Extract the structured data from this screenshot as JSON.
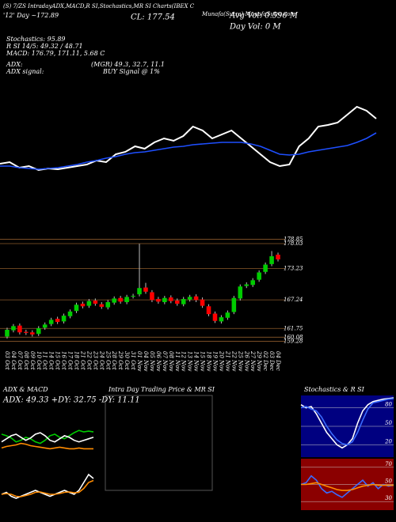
{
  "header": {
    "line1": "(S) 7/ZS IntradayADX,MACD,R SI,Stochastics,MR SI Charts(IBEX C",
    "line1b": "Munafa(Sutra) MunafaSutra.com",
    "close": "CL: 177.54",
    "day": "'12' Day ~172.89",
    "avg_vol": "Avg Vol: 0.596 M",
    "day_vol": "Day Vol: 0  M",
    "stochastics": "Stochastics: 95.89",
    "rsi": "R SI 14/5: 49.32 / 48.71",
    "macd": "MACD: 176.79, 171.11, 5.68 C",
    "adx": "ADX:",
    "adx_vals": "(MGR) 49.3, 32.7, 11.1",
    "adx_signal": "ADX  signal:",
    "adx_signal_val": "BUY Signal @ 1%",
    "intraday_title": "Intra Day Trading Price  & MR SI"
  },
  "chart_data": [
    {
      "type": "line",
      "ylim": [
        0,
        130
      ],
      "series": [
        {
          "color": "#ffffff",
          "values": [
            43,
            45,
            38,
            40,
            35,
            37,
            36,
            38,
            40,
            42,
            47,
            45,
            55,
            58,
            65,
            62,
            70,
            75,
            72,
            78,
            90,
            85,
            75,
            80,
            85,
            75,
            65,
            55,
            45,
            40,
            42,
            65,
            75,
            90,
            92,
            95,
            105,
            115,
            110,
            100
          ]
        },
        {
          "color": "#1e4fff",
          "values": [
            40,
            40,
            38,
            37,
            36,
            37,
            38,
            40,
            42,
            45,
            47,
            50,
            52,
            55,
            57,
            58,
            60,
            62,
            64,
            65,
            67,
            68,
            69,
            70,
            70,
            70,
            68,
            65,
            60,
            55,
            54,
            55,
            58,
            60,
            62,
            64,
            66,
            70,
            75,
            82
          ]
        }
      ]
    },
    {
      "type": "candlestick",
      "ylim": [
        158,
        180
      ],
      "yticks": [
        178.85,
        178.03,
        173.23,
        167.24,
        161.75,
        160.08,
        159.28
      ],
      "up_color": "#00cc00",
      "down_color": "#ff0000",
      "level_color": "#8b5a2b",
      "categories": [
        "03 Oct",
        "04 Oct",
        "07 Oct",
        "08 Oct",
        "09 Oct",
        "10 Oct",
        "11 Oct",
        "14 Oct",
        "15 Oct",
        "16 Oct",
        "17 Oct",
        "18 Oct",
        "21 Oct",
        "22 Oct",
        "23 Oct",
        "24 Oct",
        "25 Oct",
        "28 Oct",
        "29 Oct",
        "30 Oct",
        "31 Oct",
        "01 Nov",
        "04 Nov",
        "05 Nov",
        "06 Nov",
        "07 Nov",
        "08 Nov",
        "11 Nov",
        "12 Nov",
        "13 Nov",
        "14 Nov",
        "15 Nov",
        "18 Nov",
        "19 Nov",
        "20 Nov",
        "21 Nov",
        "22 Nov",
        "25 Nov",
        "26 Nov",
        "27 Nov",
        "29 Nov",
        "02 Dec",
        "03 Dec",
        "04 Dec"
      ],
      "open": [
        160.2,
        161.4,
        162.3,
        161.1,
        161.0,
        160.7,
        161.9,
        162.6,
        163.6,
        163.1,
        164.1,
        165.1,
        166.5,
        166.1,
        167.1,
        166.4,
        165.8,
        166.7,
        167.6,
        166.8,
        167.9,
        168.3,
        169.6,
        168.7,
        167.4,
        166.8,
        167.7,
        167.1,
        166.4,
        167.3,
        167.9,
        167.3,
        166.0,
        164.6,
        163.1,
        163.8,
        164.9,
        167.5,
        169.9,
        170.1,
        171.1,
        172.6,
        174.1,
        175.9
      ],
      "high": [
        161.9,
        162.6,
        162.7,
        161.5,
        161.4,
        162.2,
        162.9,
        163.8,
        164.0,
        164.6,
        165.4,
        166.7,
        166.9,
        167.4,
        167.5,
        166.8,
        167.2,
        167.9,
        168.0,
        168.2,
        168.4,
        178.0,
        170.5,
        169.1,
        167.8,
        168.0,
        168.1,
        167.5,
        167.8,
        168.2,
        168.3,
        167.7,
        166.4,
        165.0,
        164.3,
        165.2,
        168.0,
        170.2,
        170.6,
        171.4,
        172.9,
        174.4,
        176.6,
        176.3
      ],
      "low": [
        159.8,
        161.0,
        160.6,
        160.5,
        160.2,
        160.3,
        161.5,
        162.2,
        162.6,
        162.7,
        163.7,
        164.7,
        165.6,
        165.7,
        166.1,
        165.5,
        165.4,
        166.3,
        166.5,
        166.4,
        167.5,
        167.9,
        168.4,
        166.8,
        166.5,
        166.4,
        166.6,
        166.1,
        166.0,
        166.9,
        166.8,
        165.7,
        164.1,
        162.8,
        162.7,
        163.4,
        164.5,
        167.1,
        169.5,
        169.7,
        170.7,
        172.2,
        173.7,
        174.6
      ],
      "close": [
        161.5,
        162.2,
        161.0,
        160.9,
        160.6,
        161.8,
        162.5,
        163.4,
        163.0,
        164.2,
        165.0,
        166.3,
        166.0,
        167.0,
        166.5,
        165.9,
        166.8,
        167.5,
        166.9,
        167.8,
        168.0,
        169.5,
        168.8,
        167.2,
        166.9,
        167.6,
        167.0,
        166.5,
        167.4,
        167.8,
        167.2,
        166.1,
        164.5,
        163.2,
        163.9,
        164.8,
        167.6,
        169.8,
        170.2,
        171.0,
        172.5,
        174.0,
        175.6,
        175.0
      ]
    },
    {
      "type": "line",
      "title": "ADX  & MACD",
      "annotation": "ADX: 49.33  +DY: 32.75  -DY: 11.11",
      "ylim": [
        0,
        60
      ],
      "series": [
        {
          "color": "#00cc00",
          "values": [
            30,
            28,
            25,
            20,
            22,
            26,
            24,
            20,
            18,
            22,
            28,
            30,
            26,
            24,
            28,
            32,
            35,
            33,
            34,
            33
          ]
        },
        {
          "color": "#ffffff",
          "values": [
            20,
            24,
            28,
            30,
            26,
            22,
            25,
            30,
            32,
            28,
            22,
            20,
            24,
            28,
            26,
            22,
            20,
            22,
            24,
            26
          ]
        },
        {
          "color": "#ff8c00",
          "values": [
            12,
            14,
            15,
            16,
            18,
            17,
            15,
            14,
            13,
            12,
            11,
            12,
            13,
            12,
            11,
            11,
            12,
            11,
            11,
            11
          ]
        }
      ]
    },
    {
      "type": "line",
      "ylim": [
        -4,
        8
      ],
      "series": [
        {
          "color": "#ffffff",
          "values": [
            0,
            0.5,
            -0.5,
            -1,
            -0.5,
            0,
            0.5,
            1,
            0.5,
            0,
            -0.5,
            0,
            0.5,
            1,
            0.5,
            0,
            1,
            3,
            5,
            4
          ]
        },
        {
          "color": "#ff8c00",
          "values": [
            0,
            0.2,
            0,
            -0.5,
            -0.6,
            -0.3,
            0,
            0.5,
            0.6,
            0.3,
            0,
            0,
            0.2,
            0.5,
            0.6,
            0.4,
            0.5,
            1.5,
            3,
            3.5
          ]
        }
      ]
    },
    {
      "type": "line",
      "title": "Stochastics & R SI",
      "ylim": [
        0,
        100
      ],
      "yticks": [
        80,
        50,
        20
      ],
      "background": "#000080",
      "series": [
        {
          "color": "#ffffff",
          "values": [
            85,
            80,
            82,
            70,
            55,
            40,
            30,
            20,
            15,
            20,
            30,
            55,
            75,
            85,
            90,
            92,
            94,
            95,
            96
          ]
        },
        {
          "color": "#3a6bff",
          "values": [
            80,
            82,
            78,
            75,
            65,
            50,
            38,
            28,
            22,
            20,
            25,
            40,
            60,
            78,
            88,
            90,
            92,
            94,
            95
          ]
        }
      ]
    },
    {
      "type": "line",
      "ylim": [
        20,
        80
      ],
      "yticks": [
        70,
        50,
        30
      ],
      "background": "#8b0000",
      "series": [
        {
          "color": "#3a6bff",
          "values": [
            50,
            52,
            60,
            55,
            45,
            40,
            42,
            38,
            35,
            40,
            45,
            50,
            55,
            48,
            52,
            45,
            50,
            48,
            49
          ]
        },
        {
          "color": "#ff8c00",
          "values": [
            50,
            50,
            51,
            52,
            50,
            48,
            46,
            44,
            43,
            43,
            44,
            46,
            48,
            49,
            50,
            49,
            49,
            49,
            49
          ]
        }
      ]
    }
  ]
}
